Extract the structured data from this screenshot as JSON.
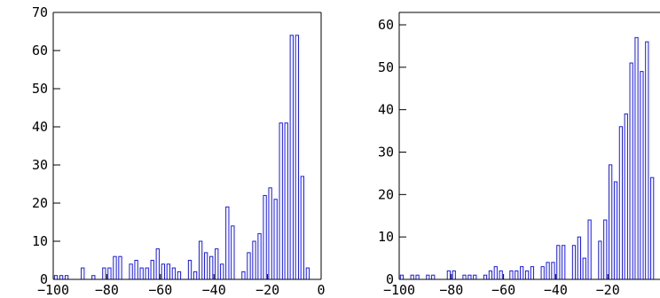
{
  "chart_data": [
    {
      "type": "bar",
      "xlim": [
        -100,
        0
      ],
      "ylim": [
        0,
        70
      ],
      "x_ticks": [
        -100,
        -80,
        -60,
        -40,
        -20,
        0
      ],
      "y_ticks": [
        0,
        10,
        20,
        30,
        40,
        50,
        60,
        70
      ],
      "x_tick_labels": [
        "−100",
        "−80",
        "−60",
        "−40",
        "−20",
        "0"
      ],
      "y_tick_labels": [
        "0",
        "10",
        "20",
        "30",
        "40",
        "50",
        "60",
        "70"
      ],
      "bar_color": "#1a1adc",
      "grid": false,
      "bins": [
        {
          "x": -99,
          "y": 1
        },
        {
          "x": -97,
          "y": 1
        },
        {
          "x": -95,
          "y": 1
        },
        {
          "x": -89,
          "y": 3
        },
        {
          "x": -85,
          "y": 1
        },
        {
          "x": -81,
          "y": 3
        },
        {
          "x": -79,
          "y": 3
        },
        {
          "x": -77,
          "y": 6
        },
        {
          "x": -75,
          "y": 6
        },
        {
          "x": -71,
          "y": 4
        },
        {
          "x": -69,
          "y": 5
        },
        {
          "x": -67,
          "y": 3
        },
        {
          "x": -65,
          "y": 3
        },
        {
          "x": -63,
          "y": 5
        },
        {
          "x": -61,
          "y": 8
        },
        {
          "x": -59,
          "y": 4
        },
        {
          "x": -57,
          "y": 4
        },
        {
          "x": -55,
          "y": 3
        },
        {
          "x": -53,
          "y": 2
        },
        {
          "x": -49,
          "y": 5
        },
        {
          "x": -47,
          "y": 2
        },
        {
          "x": -45,
          "y": 10
        },
        {
          "x": -43,
          "y": 7
        },
        {
          "x": -41,
          "y": 6
        },
        {
          "x": -39,
          "y": 8
        },
        {
          "x": -37,
          "y": 4
        },
        {
          "x": -35,
          "y": 19
        },
        {
          "x": -33,
          "y": 14
        },
        {
          "x": -29,
          "y": 2
        },
        {
          "x": -27,
          "y": 7
        },
        {
          "x": -25,
          "y": 10
        },
        {
          "x": -23,
          "y": 12
        },
        {
          "x": -21,
          "y": 22
        },
        {
          "x": -19,
          "y": 24
        },
        {
          "x": -17,
          "y": 21
        },
        {
          "x": -15,
          "y": 41
        },
        {
          "x": -13,
          "y": 41
        },
        {
          "x": -11,
          "y": 64
        },
        {
          "x": -9,
          "y": 64
        },
        {
          "x": -7,
          "y": 27
        },
        {
          "x": -5,
          "y": 3
        }
      ]
    },
    {
      "type": "bar",
      "xlim": [
        -100,
        0
      ],
      "ylim": [
        0,
        65
      ],
      "x_ticks": [
        -100,
        -80,
        -60,
        -40,
        -20
      ],
      "y_ticks": [
        0,
        10,
        20,
        30,
        40,
        50,
        60
      ],
      "x_tick_labels": [
        "−100",
        "−80",
        "−60",
        "−40",
        "−20"
      ],
      "y_tick_labels": [
        "0",
        "10",
        "20",
        "30",
        "40",
        "50",
        "60"
      ],
      "bar_color": "#1a1adc",
      "grid": false,
      "bins": [
        {
          "x": -99,
          "y": 1
        },
        {
          "x": -95,
          "y": 1
        },
        {
          "x": -93,
          "y": 1
        },
        {
          "x": -89,
          "y": 1
        },
        {
          "x": -87,
          "y": 1
        },
        {
          "x": -81,
          "y": 2
        },
        {
          "x": -79,
          "y": 2
        },
        {
          "x": -75,
          "y": 1
        },
        {
          "x": -73,
          "y": 1
        },
        {
          "x": -71,
          "y": 1
        },
        {
          "x": -67,
          "y": 1
        },
        {
          "x": -65,
          "y": 2
        },
        {
          "x": -63,
          "y": 3
        },
        {
          "x": -61,
          "y": 2
        },
        {
          "x": -57,
          "y": 2
        },
        {
          "x": -55,
          "y": 2
        },
        {
          "x": -53,
          "y": 3
        },
        {
          "x": -51,
          "y": 2
        },
        {
          "x": -49,
          "y": 3
        },
        {
          "x": -45,
          "y": 3
        },
        {
          "x": -43,
          "y": 4
        },
        {
          "x": -41,
          "y": 4
        },
        {
          "x": -39,
          "y": 8
        },
        {
          "x": -37,
          "y": 8
        },
        {
          "x": -33,
          "y": 8
        },
        {
          "x": -31,
          "y": 10
        },
        {
          "x": -29,
          "y": 5
        },
        {
          "x": -27,
          "y": 14
        },
        {
          "x": -23,
          "y": 9
        },
        {
          "x": -21,
          "y": 14
        },
        {
          "x": -19,
          "y": 27
        },
        {
          "x": -17,
          "y": 23
        },
        {
          "x": -15,
          "y": 36
        },
        {
          "x": -13,
          "y": 39
        },
        {
          "x": -11,
          "y": 51
        },
        {
          "x": -9,
          "y": 57
        },
        {
          "x": -7,
          "y": 49
        },
        {
          "x": -5,
          "y": 56
        },
        {
          "x": -3,
          "y": 24
        }
      ]
    }
  ]
}
